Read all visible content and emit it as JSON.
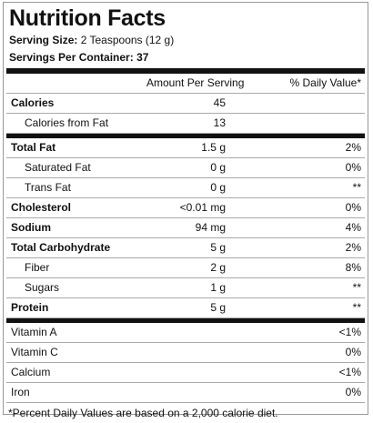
{
  "header": {
    "title": "Nutrition Facts",
    "serving_size_label": "Serving Size:",
    "serving_size": "2 Teaspoons (12 g)",
    "servings_label": "Servings Per Container:",
    "servings": "37"
  },
  "table": {
    "columns": [
      "Amount Per Serving",
      "% Daily Value*"
    ],
    "calories": {
      "name": "Calories",
      "amount": "45",
      "sub": [
        {
          "name": "Calories from Fat",
          "amount": "13"
        }
      ]
    },
    "nutrients": [
      {
        "name": "Total Fat",
        "amount": "1.5 g",
        "daily": "2%",
        "sub": [
          {
            "name": "Saturated Fat",
            "amount": "0 g",
            "daily": "0%"
          },
          {
            "name": "Trans Fat",
            "amount": "0 g",
            "daily": "**"
          }
        ]
      },
      {
        "name": "Cholesterol",
        "amount": "<0.01 mg",
        "daily": "0%"
      },
      {
        "name": "Sodium",
        "amount": "94 mg",
        "daily": "4%"
      },
      {
        "name": "Total Carbohydrate",
        "amount": "5 g",
        "daily": "2%",
        "sub": [
          {
            "name": "Fiber",
            "amount": "2 g",
            "daily": "8%"
          },
          {
            "name": "Sugars",
            "amount": "1 g",
            "daily": "**"
          }
        ]
      },
      {
        "name": "Protein",
        "amount": "5 g",
        "daily": "**"
      }
    ],
    "vitamins": [
      {
        "name": "Vitamin A",
        "daily": "<1%"
      },
      {
        "name": "Vitamin C",
        "daily": "0%"
      },
      {
        "name": "Calcium",
        "daily": "<1%"
      },
      {
        "name": "Iron",
        "daily": "0%"
      }
    ]
  },
  "footnote": "*Percent Daily Values are based on a 2,000 calorie diet."
}
